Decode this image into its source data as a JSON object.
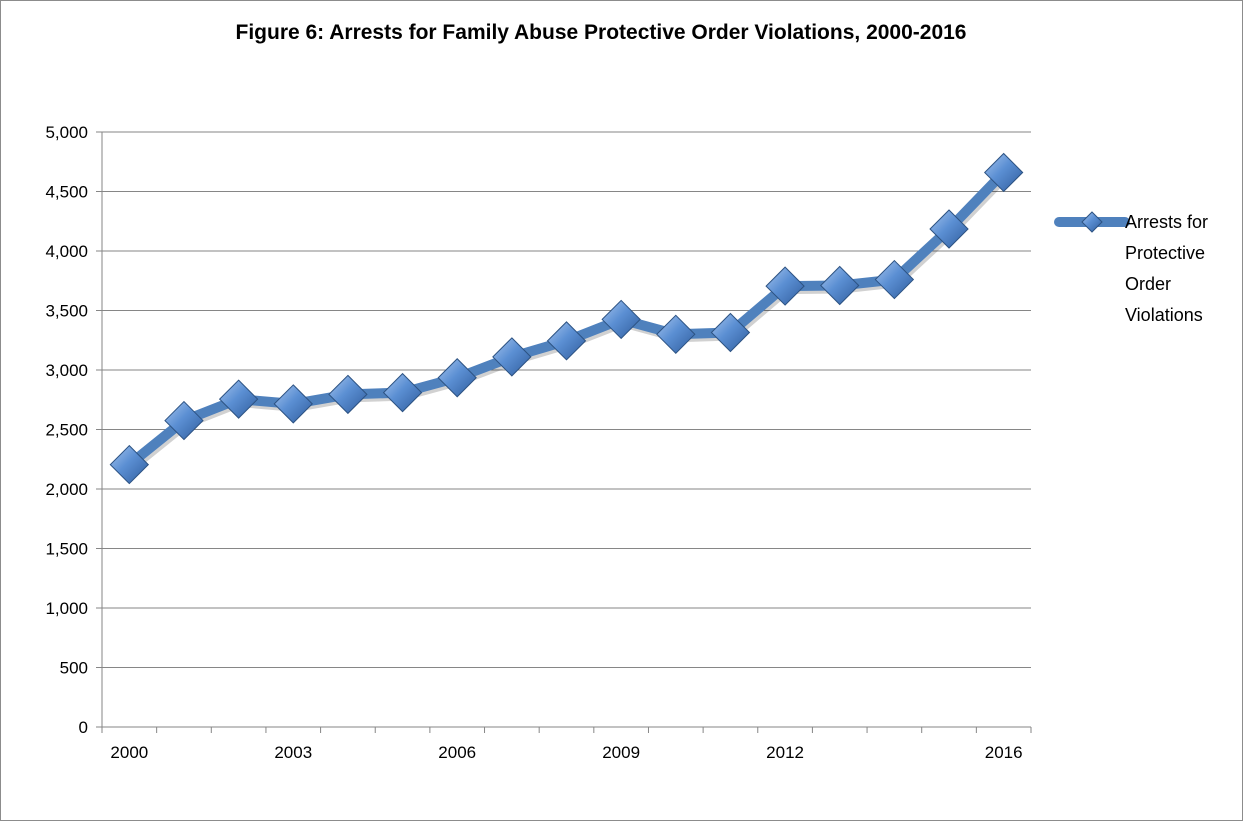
{
  "chart_data": {
    "type": "line",
    "title": "Figure 6: Arrests for Family Abuse Protective Order Violations, 2000-2016",
    "xlabel": "",
    "ylabel": "",
    "x": [
      2000,
      2001,
      2002,
      2003,
      2004,
      2005,
      2006,
      2007,
      2008,
      2009,
      2010,
      2011,
      2012,
      2013,
      2014,
      2015,
      2016
    ],
    "x_tick_labels": [
      "2000",
      "2003",
      "2006",
      "2009",
      "2012",
      "2016"
    ],
    "x_tick_label_years": [
      2000,
      2003,
      2006,
      2009,
      2012,
      2016
    ],
    "y_tick_labels": [
      "0",
      "500",
      "1,000",
      "1,500",
      "2,000",
      "2,500",
      "3,000",
      "3,500",
      "4,000",
      "4,500",
      "5,000"
    ],
    "ylim": [
      0,
      5000
    ],
    "grid": "horizontal",
    "legend_position": "right",
    "series": [
      {
        "name": "Arrests for Protective Order Violations",
        "legend_lines": [
          "Arrests for",
          "Protective",
          "Order",
          "Violations"
        ],
        "color": "#4f81bd",
        "values": [
          2205,
          2575,
          2755,
          2715,
          2795,
          2810,
          2935,
          3110,
          3245,
          3425,
          3300,
          3315,
          3705,
          3710,
          3760,
          4185,
          4660
        ]
      }
    ]
  }
}
